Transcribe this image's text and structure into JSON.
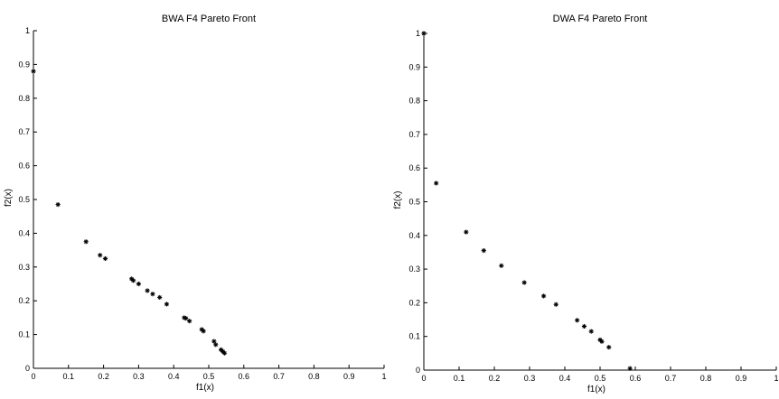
{
  "chart_data": [
    {
      "type": "scatter",
      "title": "BWA F4 Pareto Front",
      "xlabel": "f1(x)",
      "ylabel": "f2(x)",
      "xlim": [
        0,
        1
      ],
      "ylim": [
        0,
        1
      ],
      "grid": false,
      "marker": "asterisk",
      "marker_color": "#000000",
      "xticks": [
        "0",
        "0.1",
        "0.2",
        "0.3",
        "0.4",
        "0.5",
        "0.6",
        "0.7",
        "0.8",
        "0.9",
        "1"
      ],
      "yticks": [
        "0",
        "0.1",
        "0.2",
        "0.3",
        "0.4",
        "0.5",
        "0.6",
        "0.7",
        "0.8",
        "0.9",
        "1"
      ],
      "points": [
        [
          0.0,
          0.88
        ],
        [
          0.07,
          0.485
        ],
        [
          0.15,
          0.375
        ],
        [
          0.19,
          0.335
        ],
        [
          0.205,
          0.325
        ],
        [
          0.28,
          0.265
        ],
        [
          0.285,
          0.26
        ],
        [
          0.3,
          0.25
        ],
        [
          0.325,
          0.23
        ],
        [
          0.34,
          0.22
        ],
        [
          0.36,
          0.21
        ],
        [
          0.38,
          0.19
        ],
        [
          0.43,
          0.15
        ],
        [
          0.435,
          0.148
        ],
        [
          0.445,
          0.14
        ],
        [
          0.48,
          0.115
        ],
        [
          0.485,
          0.11
        ],
        [
          0.515,
          0.08
        ],
        [
          0.52,
          0.07
        ],
        [
          0.535,
          0.055
        ],
        [
          0.54,
          0.05
        ],
        [
          0.545,
          0.045
        ]
      ]
    },
    {
      "type": "scatter",
      "title": "DWA F4 Pareto Front",
      "xlabel": "f1(x)",
      "ylabel": "f2(x)",
      "xlim": [
        0,
        1
      ],
      "ylim": [
        0,
        1
      ],
      "grid": false,
      "marker": "asterisk",
      "marker_color": "#000000",
      "xticks": [
        "0",
        "0.1",
        "0.2",
        "0.3",
        "0.4",
        "0.5",
        "0.6",
        "0.7",
        "0.8",
        "0.9",
        "1"
      ],
      "yticks": [
        "0",
        "0.1",
        "0.2",
        "0.3",
        "0.4",
        "0.5",
        "0.6",
        "0.7",
        "0.8",
        "0.9",
        "1"
      ],
      "points": [
        [
          0.0,
          1.0
        ],
        [
          0.035,
          0.555
        ],
        [
          0.12,
          0.41
        ],
        [
          0.17,
          0.355
        ],
        [
          0.22,
          0.31
        ],
        [
          0.285,
          0.26
        ],
        [
          0.34,
          0.22
        ],
        [
          0.375,
          0.195
        ],
        [
          0.435,
          0.148
        ],
        [
          0.455,
          0.13
        ],
        [
          0.475,
          0.115
        ],
        [
          0.5,
          0.09
        ],
        [
          0.505,
          0.085
        ],
        [
          0.525,
          0.068
        ],
        [
          0.585,
          0.005
        ]
      ]
    }
  ]
}
